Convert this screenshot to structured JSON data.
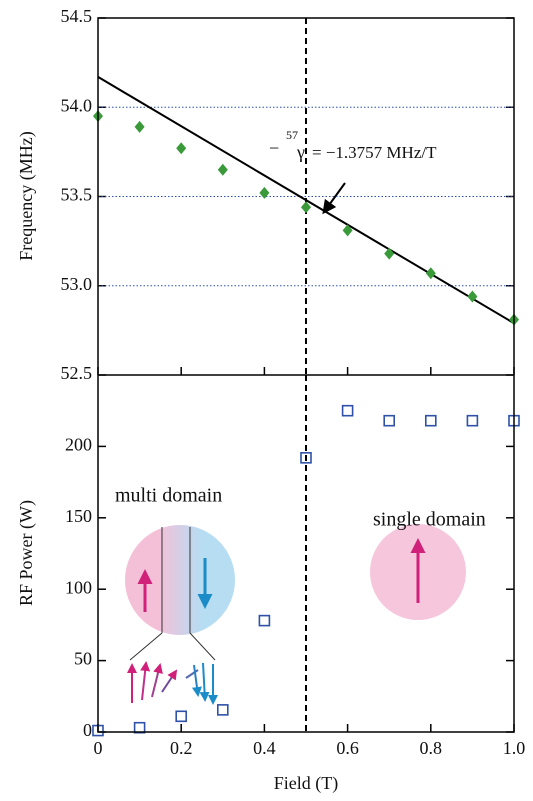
{
  "chart_data": [
    {
      "type": "scatter",
      "ylabel": "Frequency (MHz)",
      "x": [
        0,
        0.1,
        0.2,
        0.3,
        0.4,
        0.5,
        0.6,
        0.7,
        0.8,
        0.9,
        1
      ],
      "series": [
        {
          "color": "#3a9a3a",
          "marker": "diamond",
          "values": [
            53.95,
            53.89,
            53.77,
            53.65,
            53.52,
            53.44,
            53.31,
            53.18,
            53.07,
            52.94,
            52.81
          ]
        }
      ],
      "fit": {
        "color": "#000000",
        "x": [
          0,
          1
        ],
        "values": [
          54.17,
          52.79
        ]
      },
      "annotation": [
        "−",
        "57",
        "γ",
        "= −1.3757 MHz/T"
      ],
      "xlim": [
        0,
        1
      ],
      "ylim": [
        52.5,
        54.5
      ],
      "yticks": [
        {
          "value": 52.5,
          "label": "52.5"
        },
        {
          "value": 53,
          "label": "53.0"
        },
        {
          "value": 53.5,
          "label": "53.5"
        },
        {
          "value": 54,
          "label": "54.0"
        },
        {
          "value": 54.5,
          "label": "54.5"
        }
      ],
      "grid": true,
      "grid_color": "#2a4fb0",
      "vline": 0.5
    },
    {
      "type": "scatter",
      "xlabel": "Field (T)",
      "ylabel": "RF Power (W)",
      "x": [
        0,
        0.1,
        0.2,
        0.3,
        0.4,
        0.5,
        0.6,
        0.7,
        0.8,
        0.9,
        1
      ],
      "series": [
        {
          "color": "#2f52a8",
          "marker": "open-square",
          "values": [
            1,
            3,
            11,
            15.5,
            78,
            192,
            225,
            218,
            218,
            218,
            218
          ]
        }
      ],
      "annotations": [
        "multi domain",
        "single domain"
      ],
      "xlim": [
        0,
        1
      ],
      "xticks": [
        0,
        0.2,
        0.4,
        0.6,
        0.8,
        {
          "value": 1,
          "label": "1.0"
        }
      ],
      "ylim": [
        0,
        250
      ],
      "yticks": [
        0,
        50,
        100,
        150,
        200
      ],
      "vline": 0.5
    }
  ]
}
